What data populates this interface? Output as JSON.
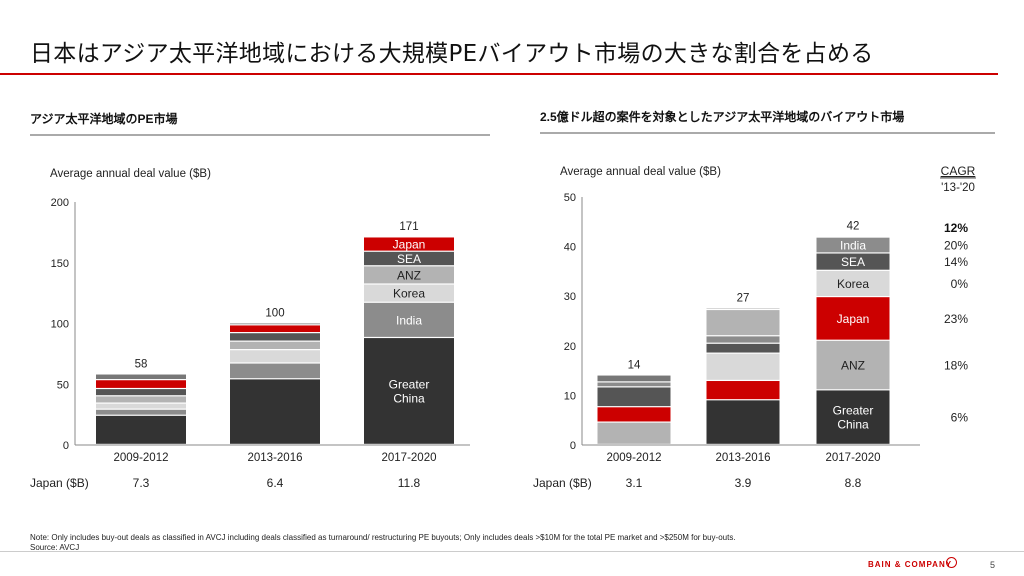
{
  "title": "日本はアジア太平洋地域における大規模PEバイアウト市場の大きな割合を占める",
  "left_panel": {
    "heading": "アジア太平洋地域のPE市場"
  },
  "right_panel": {
    "heading": "2.5億ドル超の案件を対象としたアジア太平洋地域のバイアウト市場"
  },
  "colors": {
    "greater_china": "#333333",
    "india": "#8c8c8c",
    "korea": "#d9d9d9",
    "anz": "#b3b3b3",
    "sea": "#555555",
    "japan": "#cc0000",
    "top": "#777777",
    "axis": "#888888"
  },
  "chart_data": [
    {
      "type": "bar",
      "stacked": true,
      "ylabel": "Average annual deal value ($B)",
      "ylim": [
        0,
        200
      ],
      "yticks": [
        0,
        50,
        100,
        150,
        200
      ],
      "categories": [
        "2009-2012",
        "2013-2016",
        "2017-2020"
      ],
      "totals": [
        "58",
        "100",
        "171"
      ],
      "series": [
        {
          "name": "Greater China",
          "label": "Greater\nChina",
          "color_key": "greater_china",
          "values": [
            24,
            54,
            88
          ]
        },
        {
          "name": "India",
          "label": "India",
          "color_key": "india",
          "values": [
            5,
            13,
            29
          ]
        },
        {
          "name": "Korea",
          "label": "Korea",
          "color_key": "korea",
          "values": [
            5,
            11,
            15
          ]
        },
        {
          "name": "ANZ",
          "label": "ANZ",
          "color_key": "anz",
          "values": [
            6,
            7,
            15
          ]
        },
        {
          "name": "SEA",
          "label": "SEA",
          "color_key": "sea",
          "values": [
            6,
            7,
            12
          ]
        },
        {
          "name": "Japan",
          "label": "Japan",
          "color_key": "japan",
          "values": [
            7.3,
            6.4,
            11.8
          ]
        },
        {
          "name": "",
          "label": "",
          "color_key": "top",
          "values": [
            4.7,
            1.6,
            0.2
          ]
        }
      ],
      "labeled_category_index": 2,
      "japan_row": {
        "label": "Japan ($B)",
        "values": [
          "7.3",
          "6.4",
          "11.8"
        ]
      }
    },
    {
      "type": "bar",
      "stacked": true,
      "ylabel": "Average annual deal value ($B)",
      "ylim": [
        0,
        50
      ],
      "yticks": [
        0,
        10,
        20,
        30,
        40,
        50
      ],
      "categories": [
        "2009-2012",
        "2013-2016",
        "2017-2020"
      ],
      "totals": [
        "14",
        "27",
        "42"
      ],
      "series": [
        {
          "name": "Greater China",
          "label": "Greater\nChina",
          "color_key": "greater_china",
          "values": [
            0,
            9,
            11
          ],
          "cagr": "6%"
        },
        {
          "name": "ANZ",
          "label": "ANZ",
          "color_key": "anz",
          "values": [
            4.5,
            0,
            10
          ],
          "cagr": "18%"
        },
        {
          "name": "Japan",
          "label": "Japan",
          "color_key": "japan",
          "values": [
            3.1,
            3.9,
            8.8
          ],
          "cagr": "23%"
        },
        {
          "name": "Korea",
          "label": "Korea",
          "color_key": "korea",
          "values": [
            0,
            5.5,
            5.3
          ],
          "cagr": "0%"
        },
        {
          "name": "SEA",
          "label": "SEA",
          "color_key": "sea",
          "values": [
            4,
            2,
            3.5
          ],
          "cagr": "14%"
        },
        {
          "name": "India",
          "label": "India",
          "color_key": "india",
          "values": [
            1,
            1.5,
            3.2
          ],
          "cagr": "20%"
        },
        {
          "name": "",
          "label": "",
          "color_key": "anz",
          "values": [
            0,
            5.3,
            0
          ],
          "cagr": ""
        },
        {
          "name": "",
          "label": "",
          "color_key": "top",
          "values": [
            1.4,
            0.3,
            0.2
          ],
          "cagr": ""
        }
      ],
      "labeled_category_index": 2,
      "cagr_header": "CAGR",
      "cagr_period": "'13-'20",
      "total_cagr": "12%",
      "japan_row": {
        "label": "Japan ($B)",
        "values": [
          "3.1",
          "3.9",
          "8.8"
        ]
      }
    }
  ],
  "footnote": {
    "note": "Note:  Only includes buy-out deals as classified in AVCJ including deals classified as turnaround/ restructuring PE buyouts; Only includes deals >$10M  for the total PE market and >$250M for buy-outs.",
    "source": "Source: AVCJ"
  },
  "footer": {
    "brand": "BAIN & COMPANY",
    "page": "5"
  }
}
